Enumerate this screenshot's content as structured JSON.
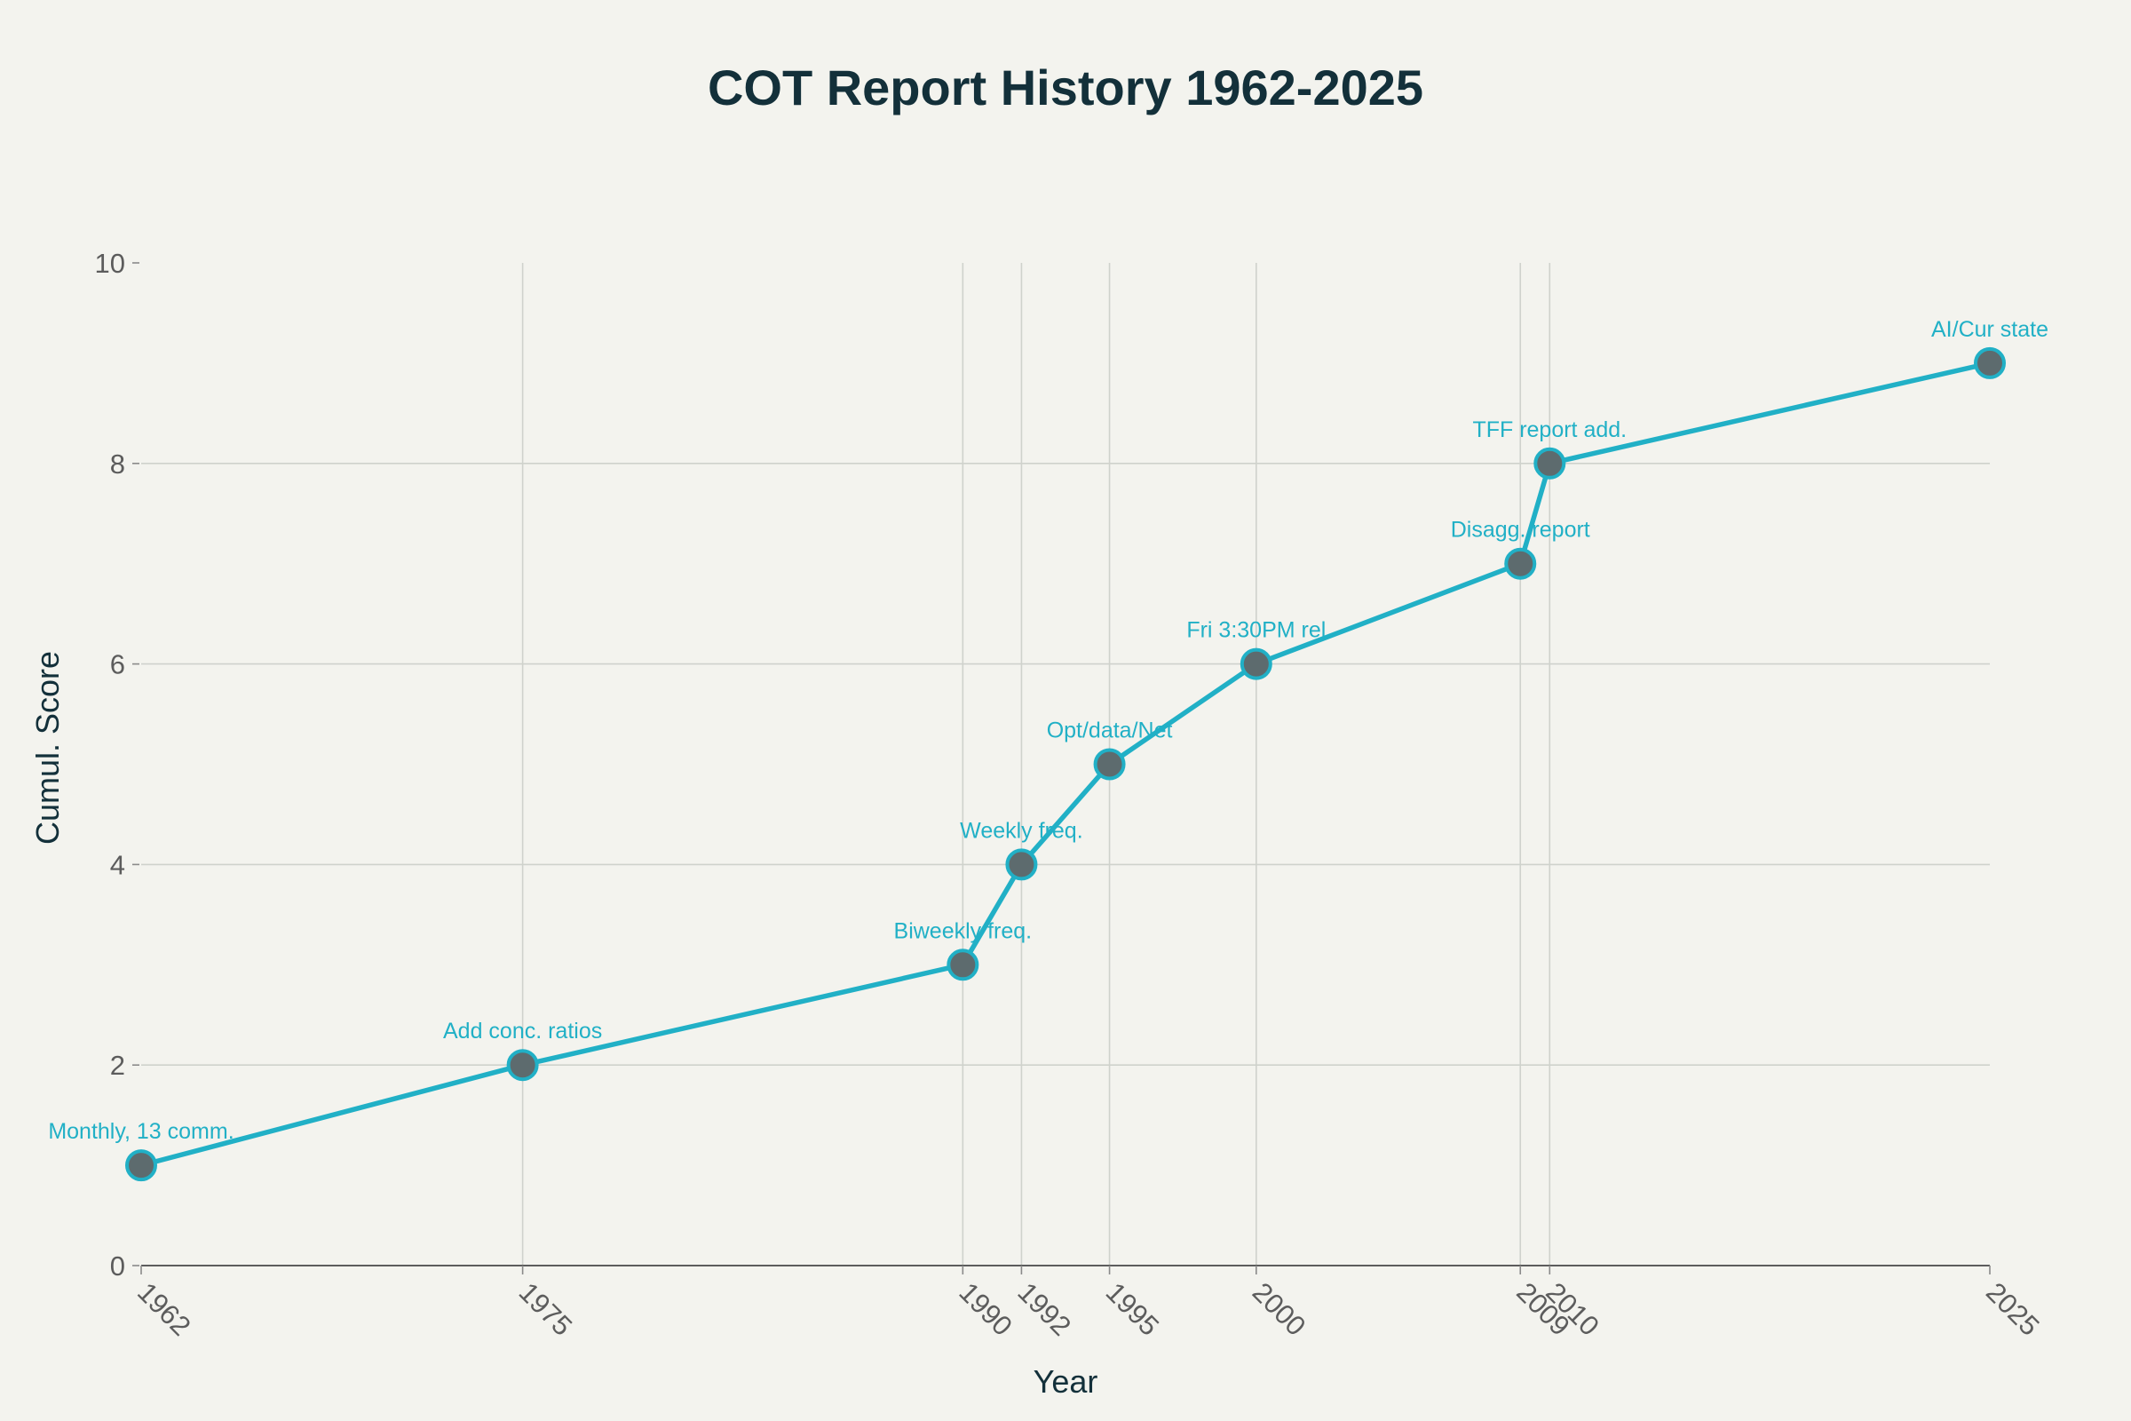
{
  "chart_data": {
    "type": "line",
    "title": "COT Report History 1962-2025",
    "xlabel": "Year",
    "ylabel": "Cumul. Score",
    "x": [
      1962,
      1975,
      1990,
      1992,
      1995,
      2000,
      2009,
      2010,
      2025
    ],
    "y": [
      1,
      2,
      3,
      4,
      5,
      6,
      7,
      8,
      9
    ],
    "annotations": [
      "Monthly, 13 comm.",
      "Add conc. ratios",
      "Biweekly freq.",
      "Weekly freq.",
      "Opt/data/Net",
      "Fri 3:30PM rel",
      "Disagg. report",
      "TFF report add.",
      "AI/Cur state"
    ],
    "xticks": [
      "1962",
      "1975",
      "1990",
      "1992",
      "1995",
      "2000",
      "2009",
      "2010",
      "2025"
    ],
    "yticks": [
      "0",
      "2",
      "4",
      "6",
      "8",
      "10"
    ],
    "xlim": [
      1962,
      2025
    ],
    "ylim": [
      0,
      10
    ],
    "grid": true,
    "line_color": "#21b0c6",
    "marker_color": "#5d6b6e",
    "background": "#f3f3ee"
  }
}
